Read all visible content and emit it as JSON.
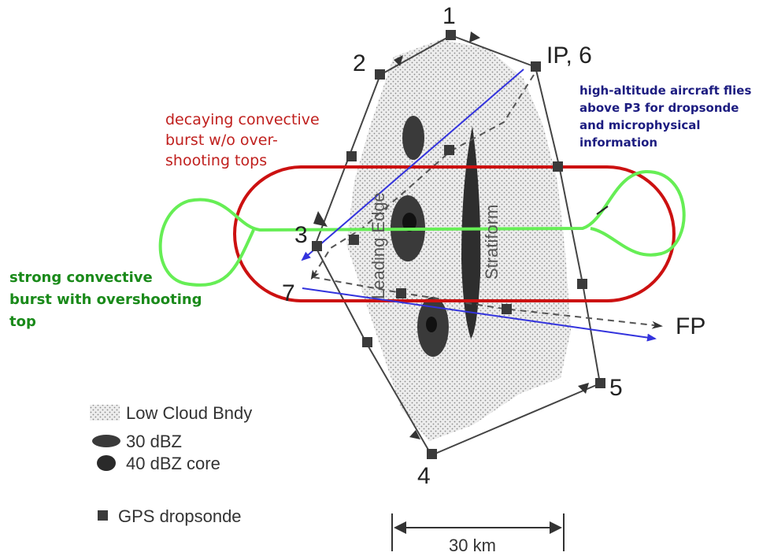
{
  "diagram": {
    "waypoints": {
      "p1": "1",
      "p2": "2",
      "p3": "3",
      "p4": "4",
      "p5": "5",
      "ip": "IP, 6",
      "p7": "7",
      "fp": "FP"
    },
    "regions": {
      "leading_edge": "Leading Edge",
      "stratiform": "Stratiform"
    },
    "annotations": {
      "decaying": [
        "decaying convective",
        "burst w/o over-",
        "shooting tops"
      ],
      "strong": [
        "strong convective",
        "burst with overshooting",
        "top"
      ],
      "high_altitude": [
        "high-altitude aircraft flies",
        "above P3 for dropsonde",
        "and microphysical",
        "information"
      ]
    },
    "legend": {
      "low_cloud": "Low Cloud Bndy",
      "dbz30": "30 dBZ",
      "dbz40": "40 dBZ core",
      "gps": "GPS dropsonde"
    },
    "scale_bar": "30 km",
    "colors": {
      "decaying": "#c0201e",
      "strong": "#1a8a1a",
      "high_altitude": "#1c1c80",
      "red_loop": "#cc1111",
      "green_loop": "#66ee55",
      "blue_track": "#3333dd"
    }
  }
}
